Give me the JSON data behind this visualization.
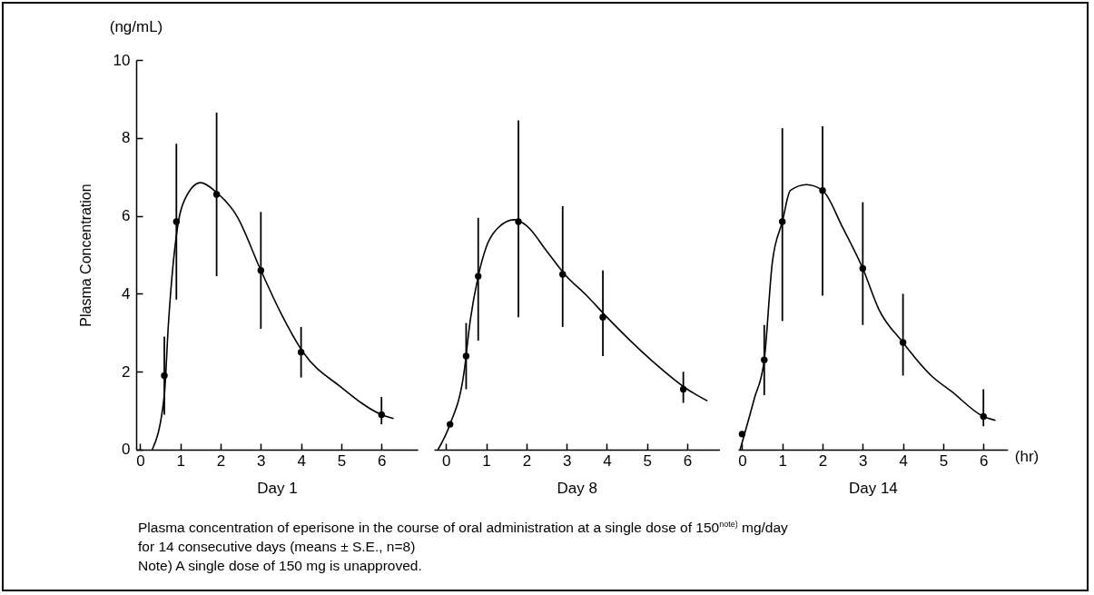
{
  "chart_data": [
    {
      "type": "scatter",
      "xlabel": "Day 1",
      "ylabel": "Plasma Concentration",
      "annotations": [
        "(ng/mL)",
        "Plasma concentration of eperisone in the course  of oral administration at a single dose of 150$^{note)}$ mg/day",
        "for 14 consecutive days (means ± S.E., n=8)",
        "Note) A single dose of 150 mg is unapproved."
      ],
      "xlim": [
        -0.1,
        6.9
      ],
      "xticks": [
        0,
        1,
        2,
        3,
        4,
        5,
        6
      ],
      "ylim": [
        0,
        10
      ],
      "yticks": [
        0,
        2,
        4,
        6,
        8,
        10
      ],
      "series": [
        {
          "type": "line",
          "color": "#000000",
          "x": [
            0.3,
            0.6,
            0.7,
            0.95,
            1.1,
            1.5,
            1.9,
            2.4,
            3,
            3.5,
            4.05,
            5,
            6,
            6.3
          ],
          "values": [
            0,
            1.4,
            3.2,
            5.85,
            6.4,
            6.85,
            6.6,
            6.0,
            4.6,
            3.5,
            2.5,
            1.6,
            0.9,
            0.8
          ]
        },
        {
          "marker": "circle",
          "color": "#000000",
          "x": [
            0.6,
            0.9,
            1.9,
            3,
            4,
            6
          ],
          "values": [
            1.9,
            5.85,
            6.55,
            4.6,
            2.5,
            0.9
          ],
          "errors": [
            1.0,
            2.0,
            2.1,
            1.5,
            0.65,
            [
              0.65,
              1.35
            ]
          ]
        }
      ]
    },
    {
      "type": "scatter",
      "xlabel": "Day 8",
      "xlim": [
        -0.3,
        6.8
      ],
      "xticks": [
        0,
        1,
        2,
        3,
        4,
        5,
        6
      ],
      "ylim": [
        0,
        10
      ],
      "yticks": [
        0,
        2,
        4,
        6,
        8,
        10
      ],
      "tick_labels": "x",
      "series": [
        {
          "type": "line",
          "color": "#000000",
          "x": [
            -0.2,
            0.1,
            0.45,
            0.6,
            0.8,
            1.0,
            1.3,
            1.7,
            2.0,
            2.5,
            2.95,
            3.5,
            4,
            5.1,
            6,
            6.5
          ],
          "values": [
            0,
            0.65,
            2.0,
            3.3,
            4.45,
            5.2,
            5.7,
            5.9,
            5.75,
            5.1,
            4.5,
            3.95,
            3.4,
            2.3,
            1.55,
            1.25
          ]
        },
        {
          "marker": "circle",
          "color": "#000000",
          "x": [
            0.1,
            0.5,
            0.8,
            1.8,
            2.9,
            3.9,
            5.9
          ],
          "values": [
            0.65,
            2.4,
            4.45,
            5.85,
            4.5,
            3.4,
            1.55
          ],
          "errors": [
            null,
            0.85,
            [
              2.8,
              5.95
            ],
            [
              3.4,
              8.45
            ],
            [
              3.15,
              6.25
            ],
            [
              2.4,
              4.6
            ],
            [
              1.2,
              2.0
            ]
          ]
        }
      ]
    },
    {
      "type": "scatter",
      "xlabel": "Day 14",
      "annotations": [
        "(hr)"
      ],
      "xlim": [
        -0.1,
        6.6
      ],
      "xticks": [
        0,
        1,
        2,
        3,
        4,
        5,
        6
      ],
      "ylim": [
        0,
        10
      ],
      "yticks": [
        0,
        2,
        4,
        6,
        8,
        10
      ],
      "tick_labels": "x",
      "series": [
        {
          "type": "line",
          "color": "#000000",
          "x": [
            -0.05,
            0.3,
            0.55,
            0.75,
            1.0,
            1.2,
            1.6,
            2.0,
            2.5,
            3,
            3.4,
            4,
            4.7,
            5.2,
            6,
            6.3
          ],
          "values": [
            0,
            1.3,
            2.3,
            4.8,
            5.85,
            6.65,
            6.8,
            6.65,
            5.7,
            4.65,
            3.6,
            2.75,
            1.9,
            1.5,
            0.85,
            0.75
          ]
        },
        {
          "marker": "circle",
          "color": "#000000",
          "x": [
            0,
            0.55,
            1,
            2,
            3,
            4,
            6
          ],
          "values": [
            0.4,
            2.3,
            5.85,
            6.65,
            4.65,
            2.75,
            0.85
          ],
          "errors": [
            null,
            0.9,
            [
              3.3,
              8.25
            ],
            [
              3.95,
              8.3
            ],
            [
              3.2,
              6.35
            ],
            [
              1.9,
              4.0
            ],
            [
              0.6,
              1.55
            ]
          ]
        }
      ]
    }
  ]
}
